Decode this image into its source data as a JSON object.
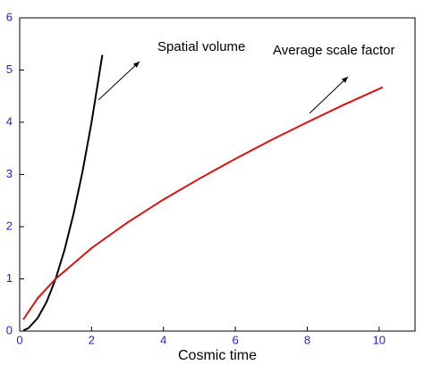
{
  "chart_data": {
    "type": "line",
    "x_label": "Cosmic time",
    "annotations": [
      "Spatial volume",
      "Average scale factor"
    ],
    "xlim": [
      0,
      11
    ],
    "xticks": [
      0,
      2,
      4,
      6,
      8,
      10
    ],
    "ylim": [
      0,
      6
    ],
    "yticks": [
      0,
      1,
      2,
      3,
      4,
      5,
      6
    ],
    "tick_color": "#1f1fd0",
    "series": [
      {
        "name": "Spatial volume",
        "color": "#000000",
        "x": [
          0.1,
          0.25,
          0.5,
          0.75,
          1,
          1.25,
          1.5,
          1.75,
          2,
          2.3
        ],
        "values": [
          0.01,
          0.06,
          0.25,
          0.56,
          1,
          1.56,
          2.25,
          3.06,
          4,
          5.29
        ]
      },
      {
        "name": "Average scale factor",
        "color": "#e01010",
        "x": [
          0.1,
          0.5,
          1,
          2,
          3,
          4,
          5,
          6,
          7,
          8,
          9,
          10.1
        ],
        "values": [
          0.22,
          0.63,
          1,
          1.59,
          2.08,
          2.52,
          2.92,
          3.3,
          3.66,
          4.0,
          4.33,
          4.67
        ]
      }
    ]
  }
}
